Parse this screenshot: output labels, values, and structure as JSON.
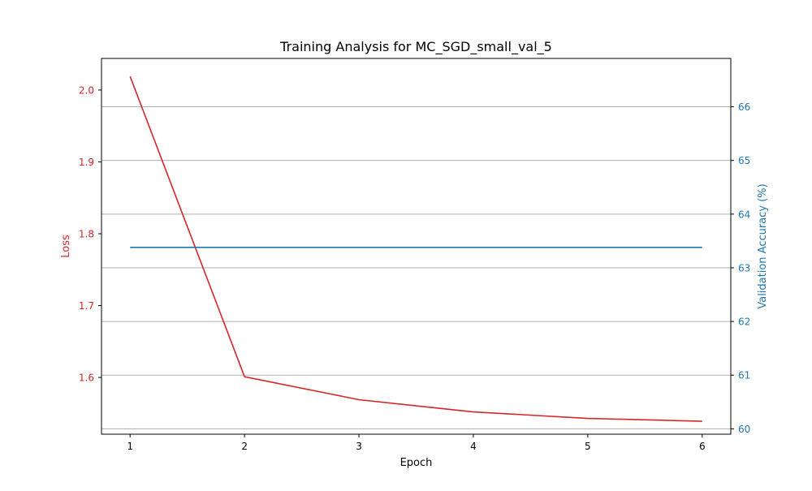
{
  "chart_data": {
    "type": "line",
    "title": "Training Analysis for MC_SGD_small_val_5",
    "xlabel": "Epoch",
    "ylabel_left": "Loss",
    "ylabel_right": "Validation Accuracy (%)",
    "x": [
      1,
      2,
      3,
      4,
      5,
      6
    ],
    "xlim": [
      0.75,
      6.25
    ],
    "ylim_left": [
      1.521,
      2.044
    ],
    "ylim_right": [
      59.9,
      66.9
    ],
    "x_ticks": [
      1,
      2,
      3,
      4,
      5,
      6
    ],
    "y_ticks_left": [
      1.6,
      1.7,
      1.8,
      1.9,
      2.0
    ],
    "y_ticks_right": [
      60,
      61,
      62,
      63,
      64,
      65,
      66
    ],
    "grid": "right-axis horizontal",
    "series": [
      {
        "name": "",
        "axis": "left",
        "color": "#d62728",
        "values": [
          2.019,
          1.601,
          1.569,
          1.552,
          1.543,
          1.539
        ]
      },
      {
        "name": "",
        "axis": "right",
        "color": "#1f77b4",
        "values": [
          63.38,
          63.38,
          63.38,
          63.38,
          63.38,
          63.38
        ]
      }
    ],
    "colors": {
      "left_axis": "#d62728",
      "right_axis": "#1f77b4",
      "grid": "#b0b0b0",
      "text": "#000000"
    }
  }
}
